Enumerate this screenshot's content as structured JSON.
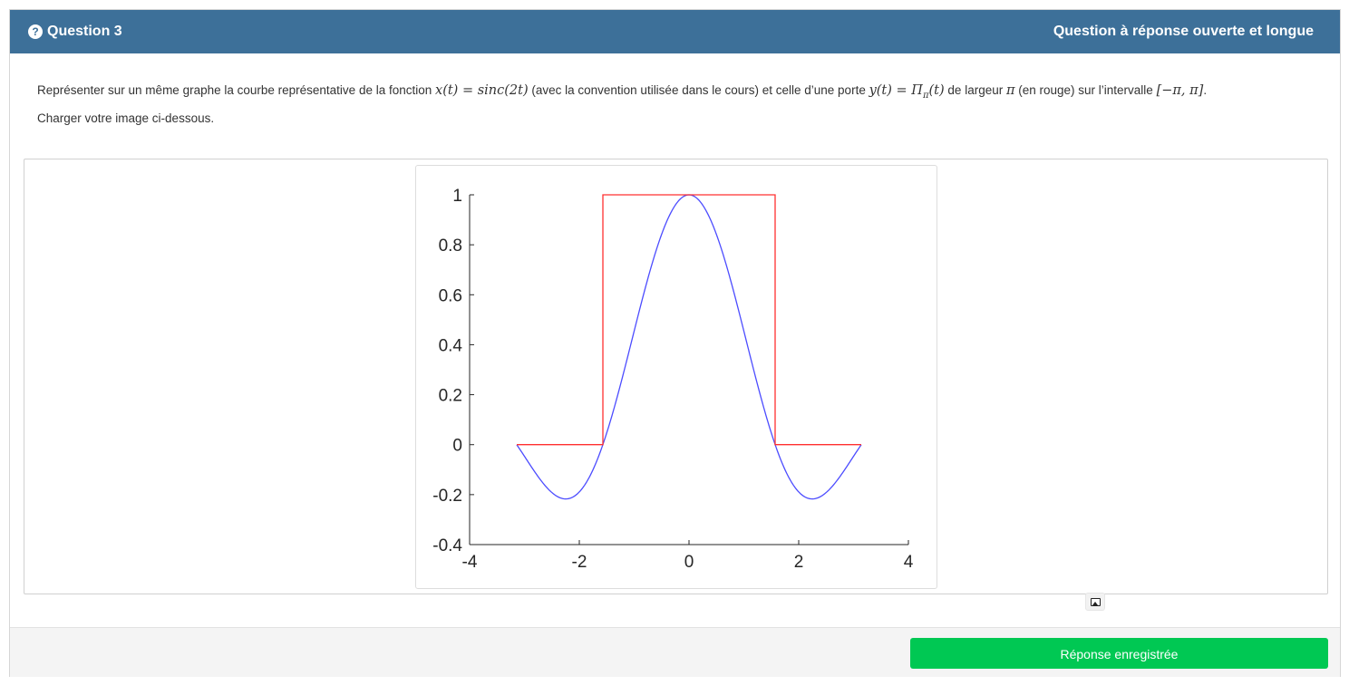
{
  "header": {
    "question_icon": "question-circle-icon",
    "question_label": "Question 3",
    "question_type": "Question à réponse ouverte et longue",
    "color": "#3d7099"
  },
  "statement": {
    "part1": "Représenter sur un même graphe la courbe représentative de la fonction ",
    "math1": "x(t) = sinc(2t)",
    "part2": " (avec la convention utilisée dans le cours) et celle d’une porte ",
    "math2": "y(t) = Π",
    "math2_sub": "π",
    "math2_end": "(t)",
    "part3": " de largeur ",
    "math3": "π",
    "part4": " (en rouge) sur l’intervalle ",
    "math4": "[−π, π]",
    "part5": "."
  },
  "upload_label": "Charger votre image ci-dessous.",
  "image_button_icon": "image-icon",
  "footer": {
    "save_label": "Réponse enregistrée",
    "save_color": "#00c853"
  },
  "chart_data": {
    "type": "line",
    "title": "",
    "xlabel": "",
    "ylabel": "",
    "xlim": [
      -4,
      4
    ],
    "ylim": [
      -0.4,
      1
    ],
    "xticks": [
      -4,
      -2,
      0,
      2,
      4
    ],
    "yticks": [
      -0.4,
      -0.2,
      0,
      0.2,
      0.4,
      0.6,
      0.8,
      1
    ],
    "xtick_labels": [
      "-4",
      "-2",
      "0",
      "2",
      "4"
    ],
    "ytick_labels": [
      "-0.4",
      "-0.2",
      "0",
      "0.2",
      "0.4",
      "0.6",
      "0.8",
      "1"
    ],
    "grid": false,
    "series": [
      {
        "color": "#4c4cff",
        "x": [
          -3.14,
          -2.9,
          -2.6,
          -2.25,
          -1.9,
          -1.57,
          -1.2,
          -0.8,
          -0.4,
          0,
          0.4,
          0.8,
          1.2,
          1.57,
          1.9,
          2.25,
          2.6,
          2.9,
          3.14
        ],
        "y": [
          0,
          -0.08,
          -0.17,
          -0.22,
          -0.16,
          0,
          0.26,
          0.58,
          0.88,
          1,
          0.88,
          0.58,
          0.26,
          0,
          -0.16,
          -0.22,
          -0.17,
          -0.08,
          0
        ]
      },
      {
        "color": "#ff3030",
        "x": [
          -3.14,
          -1.57,
          -1.57,
          1.57,
          1.57,
          3.14
        ],
        "y": [
          0,
          0,
          1,
          1,
          0,
          0
        ]
      }
    ]
  }
}
